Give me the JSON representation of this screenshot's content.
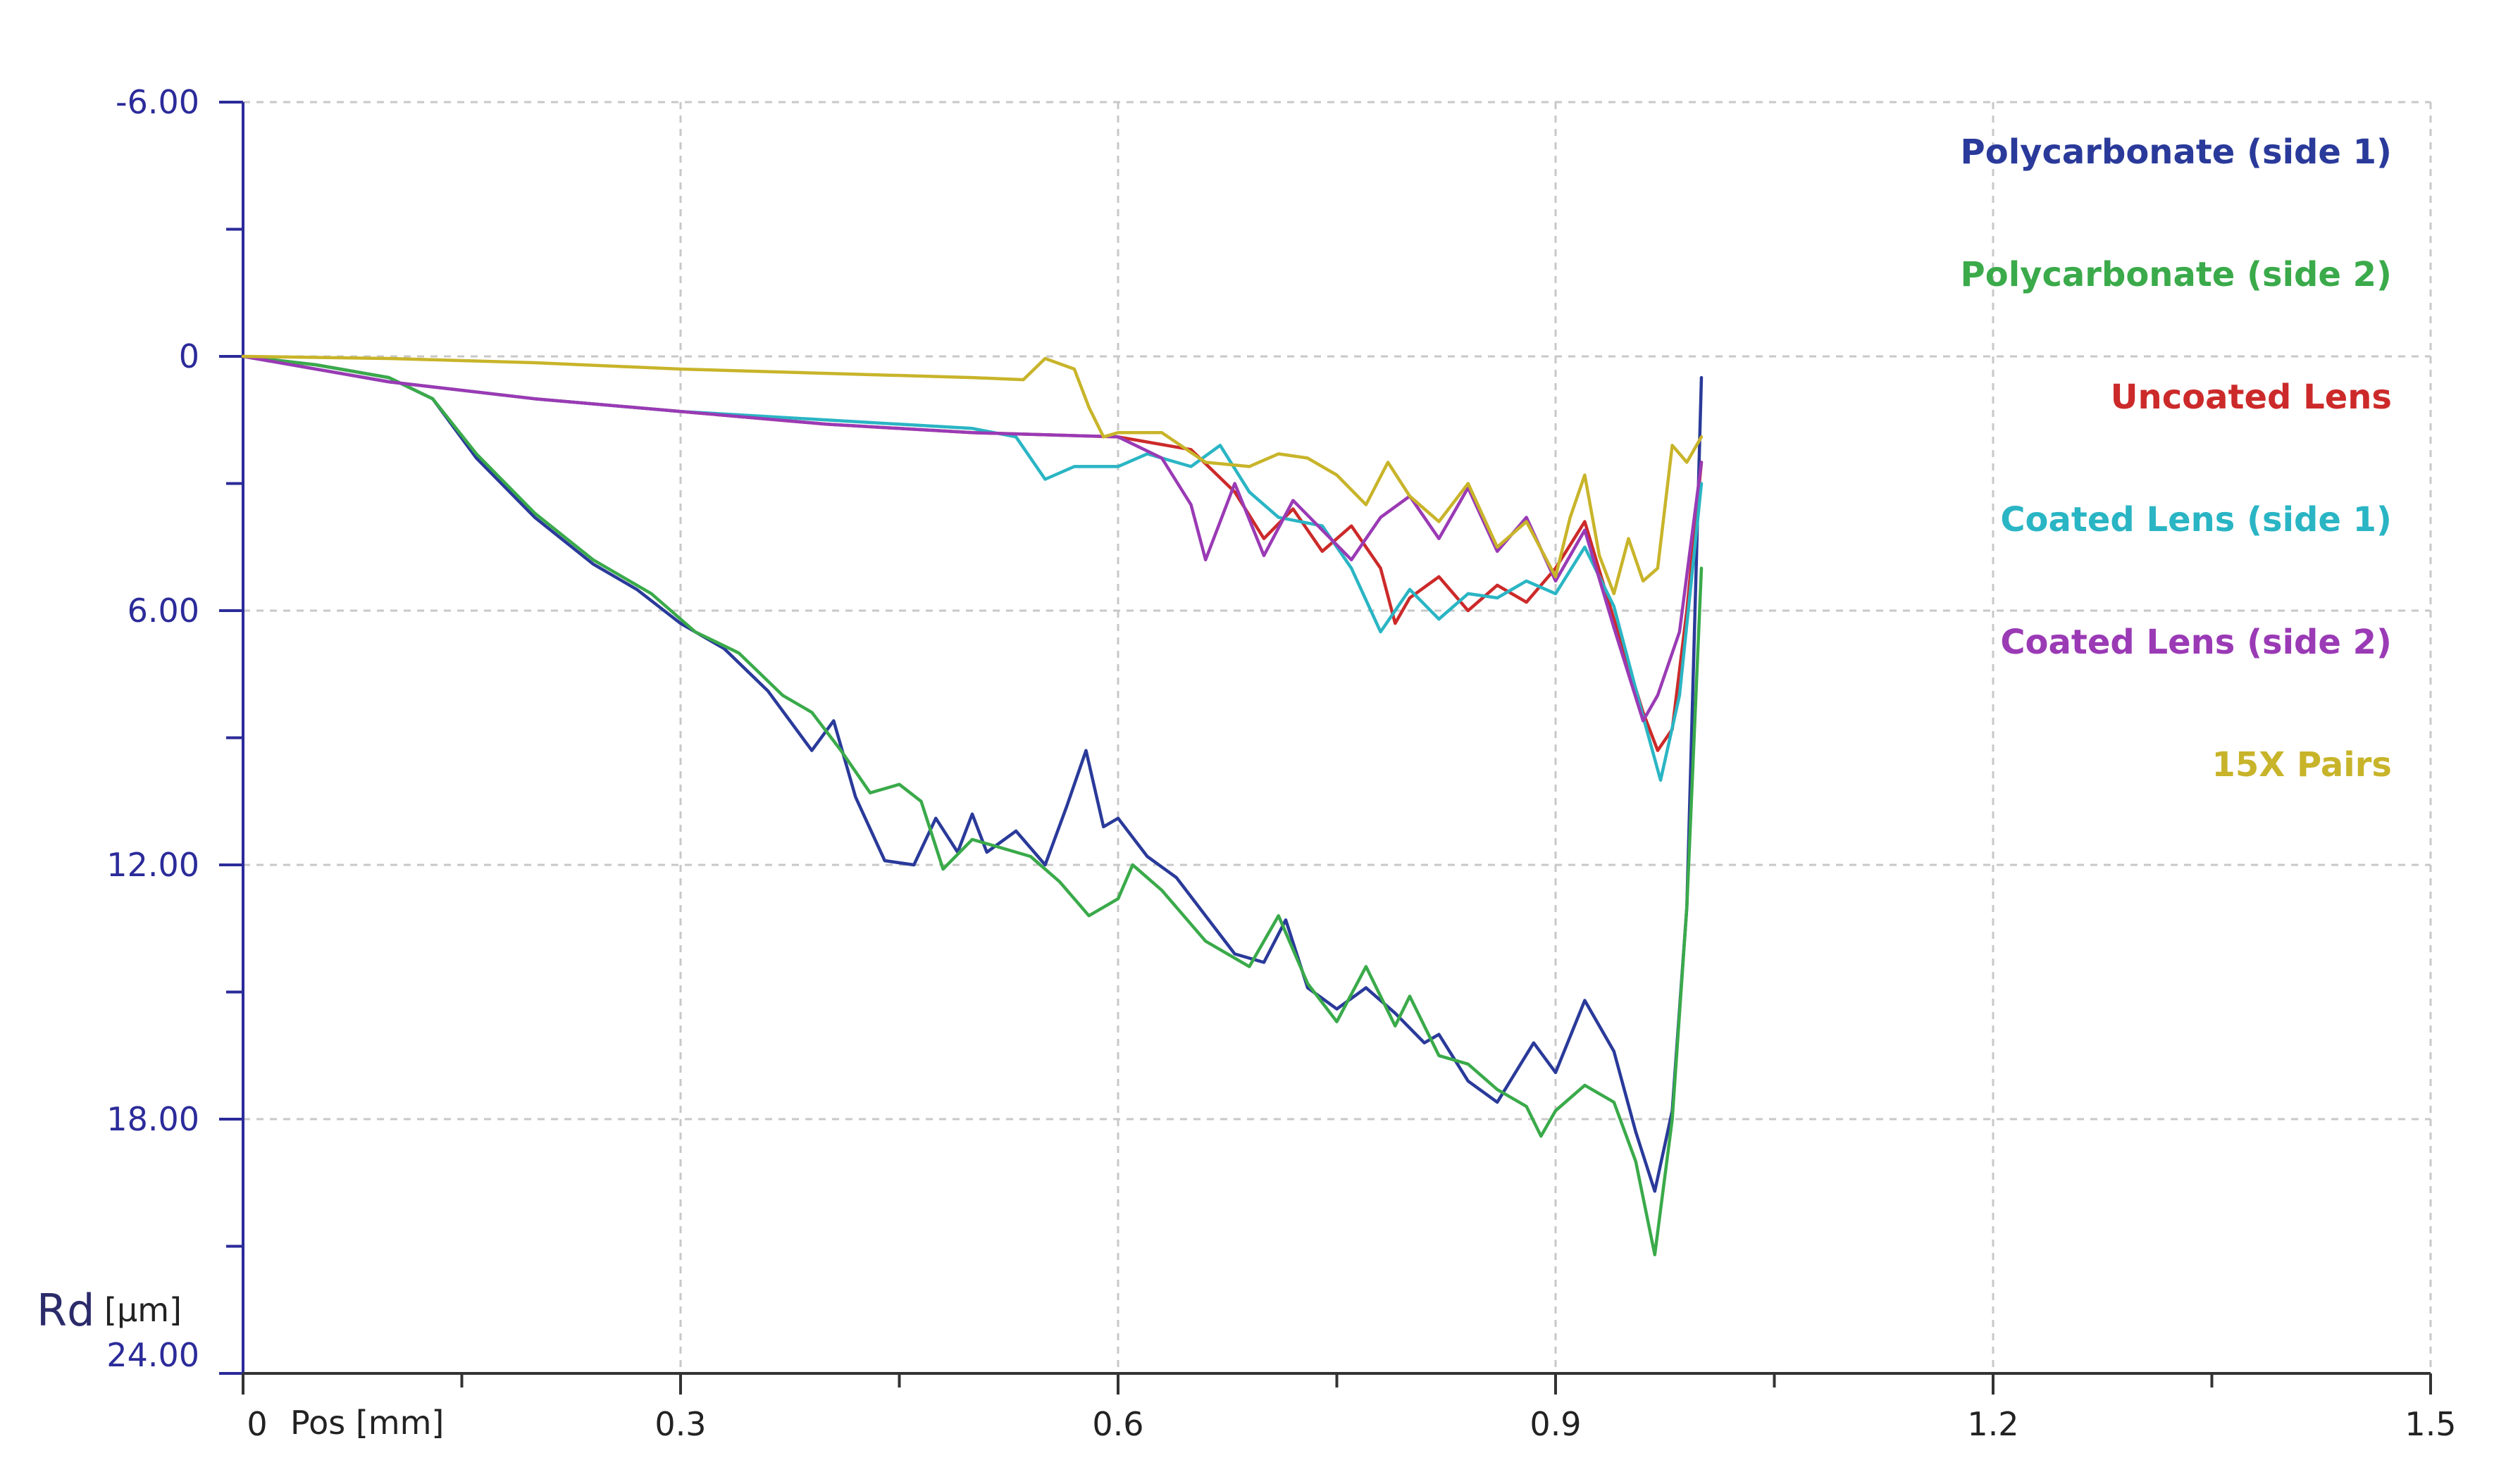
{
  "chart_data": {
    "type": "line",
    "title": "",
    "xlabel": "Pos [mm]",
    "ylabel_symbol": "Rd",
    "ylabel_unit": "[μm]",
    "xlim": [
      0,
      1.5
    ],
    "ylim": [
      -6,
      24
    ],
    "y_inverted": true,
    "x_ticks": [
      "0",
      "0.3",
      "0.6",
      "0.9",
      "1.2",
      "1.5"
    ],
    "y_ticks": [
      "-6.00",
      "0",
      "6.00",
      "12.00",
      "18.00",
      "24.00"
    ],
    "grid": true,
    "legend_position": "top-right",
    "series": [
      {
        "name": "Polycarbonate (side 1)",
        "color": "#2a3a9a",
        "points": [
          [
            0,
            0
          ],
          [
            0.05,
            0.2
          ],
          [
            0.1,
            0.5
          ],
          [
            0.13,
            1.0
          ],
          [
            0.16,
            2.4
          ],
          [
            0.2,
            3.8
          ],
          [
            0.24,
            4.9
          ],
          [
            0.27,
            5.5
          ],
          [
            0.3,
            6.3
          ],
          [
            0.33,
            6.9
          ],
          [
            0.36,
            7.9
          ],
          [
            0.39,
            9.3
          ],
          [
            0.405,
            8.6
          ],
          [
            0.42,
            10.4
          ],
          [
            0.44,
            11.9
          ],
          [
            0.46,
            12.0
          ],
          [
            0.475,
            10.9
          ],
          [
            0.49,
            11.7
          ],
          [
            0.5,
            10.8
          ],
          [
            0.51,
            11.7
          ],
          [
            0.53,
            11.2
          ],
          [
            0.55,
            12.0
          ],
          [
            0.565,
            10.6
          ],
          [
            0.578,
            9.3
          ],
          [
            0.59,
            11.1
          ],
          [
            0.6,
            10.9
          ],
          [
            0.62,
            11.8
          ],
          [
            0.64,
            12.3
          ],
          [
            0.66,
            13.2
          ],
          [
            0.68,
            14.1
          ],
          [
            0.7,
            14.3
          ],
          [
            0.715,
            13.3
          ],
          [
            0.73,
            14.9
          ],
          [
            0.75,
            15.4
          ],
          [
            0.77,
            14.9
          ],
          [
            0.79,
            15.5
          ],
          [
            0.81,
            16.2
          ],
          [
            0.82,
            16.0
          ],
          [
            0.84,
            17.1
          ],
          [
            0.86,
            17.6
          ],
          [
            0.885,
            16.2
          ],
          [
            0.9,
            16.9
          ],
          [
            0.92,
            15.2
          ],
          [
            0.94,
            16.4
          ],
          [
            0.955,
            18.3
          ],
          [
            0.968,
            19.7
          ],
          [
            0.98,
            17.8
          ],
          [
            0.99,
            13.0
          ],
          [
            1.0,
            0.5
          ]
        ]
      },
      {
        "name": "Polycarbonate (side 2)",
        "color": "#3aaa4a",
        "points": [
          [
            0,
            0
          ],
          [
            0.05,
            0.2
          ],
          [
            0.1,
            0.5
          ],
          [
            0.13,
            1.0
          ],
          [
            0.16,
            2.3
          ],
          [
            0.2,
            3.7
          ],
          [
            0.24,
            4.8
          ],
          [
            0.28,
            5.6
          ],
          [
            0.31,
            6.5
          ],
          [
            0.34,
            7.0
          ],
          [
            0.37,
            8.0
          ],
          [
            0.39,
            8.4
          ],
          [
            0.41,
            9.3
          ],
          [
            0.43,
            10.3
          ],
          [
            0.45,
            10.1
          ],
          [
            0.465,
            10.5
          ],
          [
            0.48,
            12.1
          ],
          [
            0.5,
            11.4
          ],
          [
            0.52,
            11.6
          ],
          [
            0.54,
            11.8
          ],
          [
            0.56,
            12.4
          ],
          [
            0.58,
            13.2
          ],
          [
            0.6,
            12.8
          ],
          [
            0.61,
            12.0
          ],
          [
            0.63,
            12.6
          ],
          [
            0.66,
            13.8
          ],
          [
            0.69,
            14.4
          ],
          [
            0.71,
            13.2
          ],
          [
            0.73,
            14.8
          ],
          [
            0.75,
            15.7
          ],
          [
            0.77,
            14.4
          ],
          [
            0.79,
            15.8
          ],
          [
            0.8,
            15.1
          ],
          [
            0.82,
            16.5
          ],
          [
            0.84,
            16.7
          ],
          [
            0.86,
            17.3
          ],
          [
            0.88,
            17.7
          ],
          [
            0.89,
            18.4
          ],
          [
            0.9,
            17.8
          ],
          [
            0.92,
            17.2
          ],
          [
            0.94,
            17.6
          ],
          [
            0.955,
            19.0
          ],
          [
            0.968,
            21.2
          ],
          [
            0.98,
            18.0
          ],
          [
            0.99,
            13.0
          ],
          [
            1.0,
            5.0
          ]
        ]
      },
      {
        "name": "Uncoated Lens",
        "color": "#cc2a2a",
        "points": [
          [
            0,
            0
          ],
          [
            0.1,
            0.6
          ],
          [
            0.2,
            1.0
          ],
          [
            0.3,
            1.3
          ],
          [
            0.4,
            1.6
          ],
          [
            0.5,
            1.8
          ],
          [
            0.6,
            1.9
          ],
          [
            0.65,
            2.2
          ],
          [
            0.68,
            3.2
          ],
          [
            0.7,
            4.3
          ],
          [
            0.72,
            3.6
          ],
          [
            0.74,
            4.6
          ],
          [
            0.76,
            4.0
          ],
          [
            0.78,
            5.0
          ],
          [
            0.79,
            6.3
          ],
          [
            0.8,
            5.7
          ],
          [
            0.82,
            5.2
          ],
          [
            0.84,
            6.0
          ],
          [
            0.86,
            5.4
          ],
          [
            0.88,
            5.8
          ],
          [
            0.9,
            5.0
          ],
          [
            0.92,
            3.9
          ],
          [
            0.94,
            6.2
          ],
          [
            0.96,
            8.4
          ],
          [
            0.97,
            9.3
          ],
          [
            0.98,
            8.8
          ],
          [
            0.99,
            6.0
          ],
          [
            1.0,
            2.5
          ]
        ]
      },
      {
        "name": "Coated Lens (side 1)",
        "color": "#2ab5c4",
        "points": [
          [
            0,
            0
          ],
          [
            0.1,
            0.6
          ],
          [
            0.2,
            1.0
          ],
          [
            0.3,
            1.3
          ],
          [
            0.4,
            1.5
          ],
          [
            0.5,
            1.7
          ],
          [
            0.53,
            1.9
          ],
          [
            0.55,
            2.9
          ],
          [
            0.57,
            2.6
          ],
          [
            0.6,
            2.6
          ],
          [
            0.62,
            2.3
          ],
          [
            0.65,
            2.6
          ],
          [
            0.67,
            2.1
          ],
          [
            0.69,
            3.2
          ],
          [
            0.71,
            3.8
          ],
          [
            0.74,
            4.0
          ],
          [
            0.76,
            5.0
          ],
          [
            0.78,
            6.5
          ],
          [
            0.8,
            5.5
          ],
          [
            0.82,
            6.2
          ],
          [
            0.84,
            5.6
          ],
          [
            0.86,
            5.7
          ],
          [
            0.88,
            5.3
          ],
          [
            0.9,
            5.6
          ],
          [
            0.92,
            4.5
          ],
          [
            0.94,
            5.9
          ],
          [
            0.96,
            8.5
          ],
          [
            0.972,
            10.0
          ],
          [
            0.985,
            8.0
          ],
          [
            1.0,
            3.0
          ]
        ]
      },
      {
        "name": "Coated Lens (side 2)",
        "color": "#9a3ab5",
        "points": [
          [
            0,
            0
          ],
          [
            0.1,
            0.6
          ],
          [
            0.2,
            1.0
          ],
          [
            0.3,
            1.3
          ],
          [
            0.4,
            1.6
          ],
          [
            0.5,
            1.8
          ],
          [
            0.6,
            1.9
          ],
          [
            0.63,
            2.4
          ],
          [
            0.65,
            3.5
          ],
          [
            0.66,
            4.8
          ],
          [
            0.68,
            3.0
          ],
          [
            0.7,
            4.7
          ],
          [
            0.72,
            3.4
          ],
          [
            0.74,
            4.1
          ],
          [
            0.76,
            4.8
          ],
          [
            0.78,
            3.8
          ],
          [
            0.8,
            3.3
          ],
          [
            0.82,
            4.3
          ],
          [
            0.84,
            3.1
          ],
          [
            0.86,
            4.6
          ],
          [
            0.88,
            3.8
          ],
          [
            0.9,
            5.3
          ],
          [
            0.92,
            4.1
          ],
          [
            0.94,
            6.4
          ],
          [
            0.96,
            8.6
          ],
          [
            0.97,
            8.0
          ],
          [
            0.985,
            6.5
          ],
          [
            1.0,
            2.5
          ]
        ]
      },
      {
        "name": "15X Pairs",
        "color": "#c8b42a",
        "points": [
          [
            0,
            0
          ],
          [
            0.1,
            0.05
          ],
          [
            0.2,
            0.15
          ],
          [
            0.3,
            0.3
          ],
          [
            0.4,
            0.4
          ],
          [
            0.5,
            0.5
          ],
          [
            0.535,
            0.55
          ],
          [
            0.55,
            0.05
          ],
          [
            0.57,
            0.3
          ],
          [
            0.58,
            1.2
          ],
          [
            0.59,
            1.9
          ],
          [
            0.6,
            1.8
          ],
          [
            0.63,
            1.8
          ],
          [
            0.66,
            2.5
          ],
          [
            0.69,
            2.6
          ],
          [
            0.71,
            2.3
          ],
          [
            0.73,
            2.4
          ],
          [
            0.75,
            2.8
          ],
          [
            0.77,
            3.5
          ],
          [
            0.785,
            2.5
          ],
          [
            0.8,
            3.3
          ],
          [
            0.82,
            3.9
          ],
          [
            0.84,
            3.0
          ],
          [
            0.86,
            4.5
          ],
          [
            0.88,
            3.9
          ],
          [
            0.9,
            5.2
          ],
          [
            0.91,
            3.8
          ],
          [
            0.92,
            2.8
          ],
          [
            0.93,
            4.7
          ],
          [
            0.94,
            5.6
          ],
          [
            0.95,
            4.3
          ],
          [
            0.96,
            5.3
          ],
          [
            0.97,
            5.0
          ],
          [
            0.98,
            2.1
          ],
          [
            0.99,
            2.5
          ],
          [
            1.0,
            1.9
          ]
        ]
      }
    ]
  }
}
